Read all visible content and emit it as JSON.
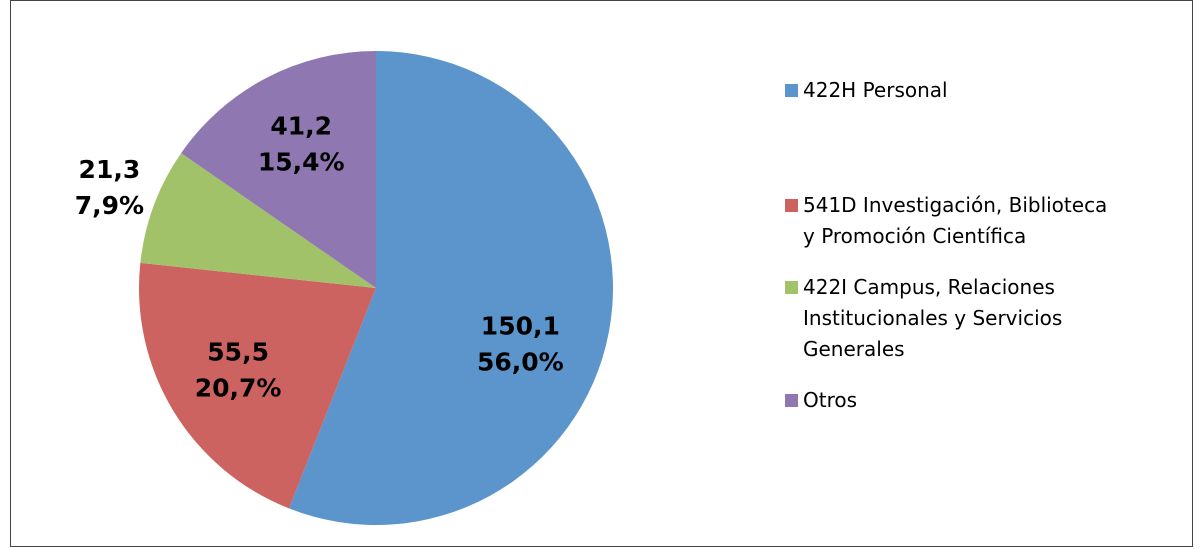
{
  "chart_data": {
    "type": "pie",
    "categories": [
      "422H Personal",
      "541D Investigación, Biblioteca y Promoción Científica",
      "422I Campus, Relaciones Institucionales y Servicios Generales",
      "Otros"
    ],
    "values": [
      150.1,
      55.5,
      21.3,
      41.2
    ],
    "value_labels": [
      "150,1",
      "55,5",
      "21,3",
      "41,2"
    ],
    "percents": [
      56.0,
      20.7,
      7.9,
      15.4
    ],
    "percent_labels": [
      "56,0%",
      "20,7%",
      "7,9%",
      "15,4%"
    ],
    "colors": [
      "#5b95cb",
      "#cc6360",
      "#a2c26a",
      "#8f78b2"
    ],
    "legend": "right"
  }
}
